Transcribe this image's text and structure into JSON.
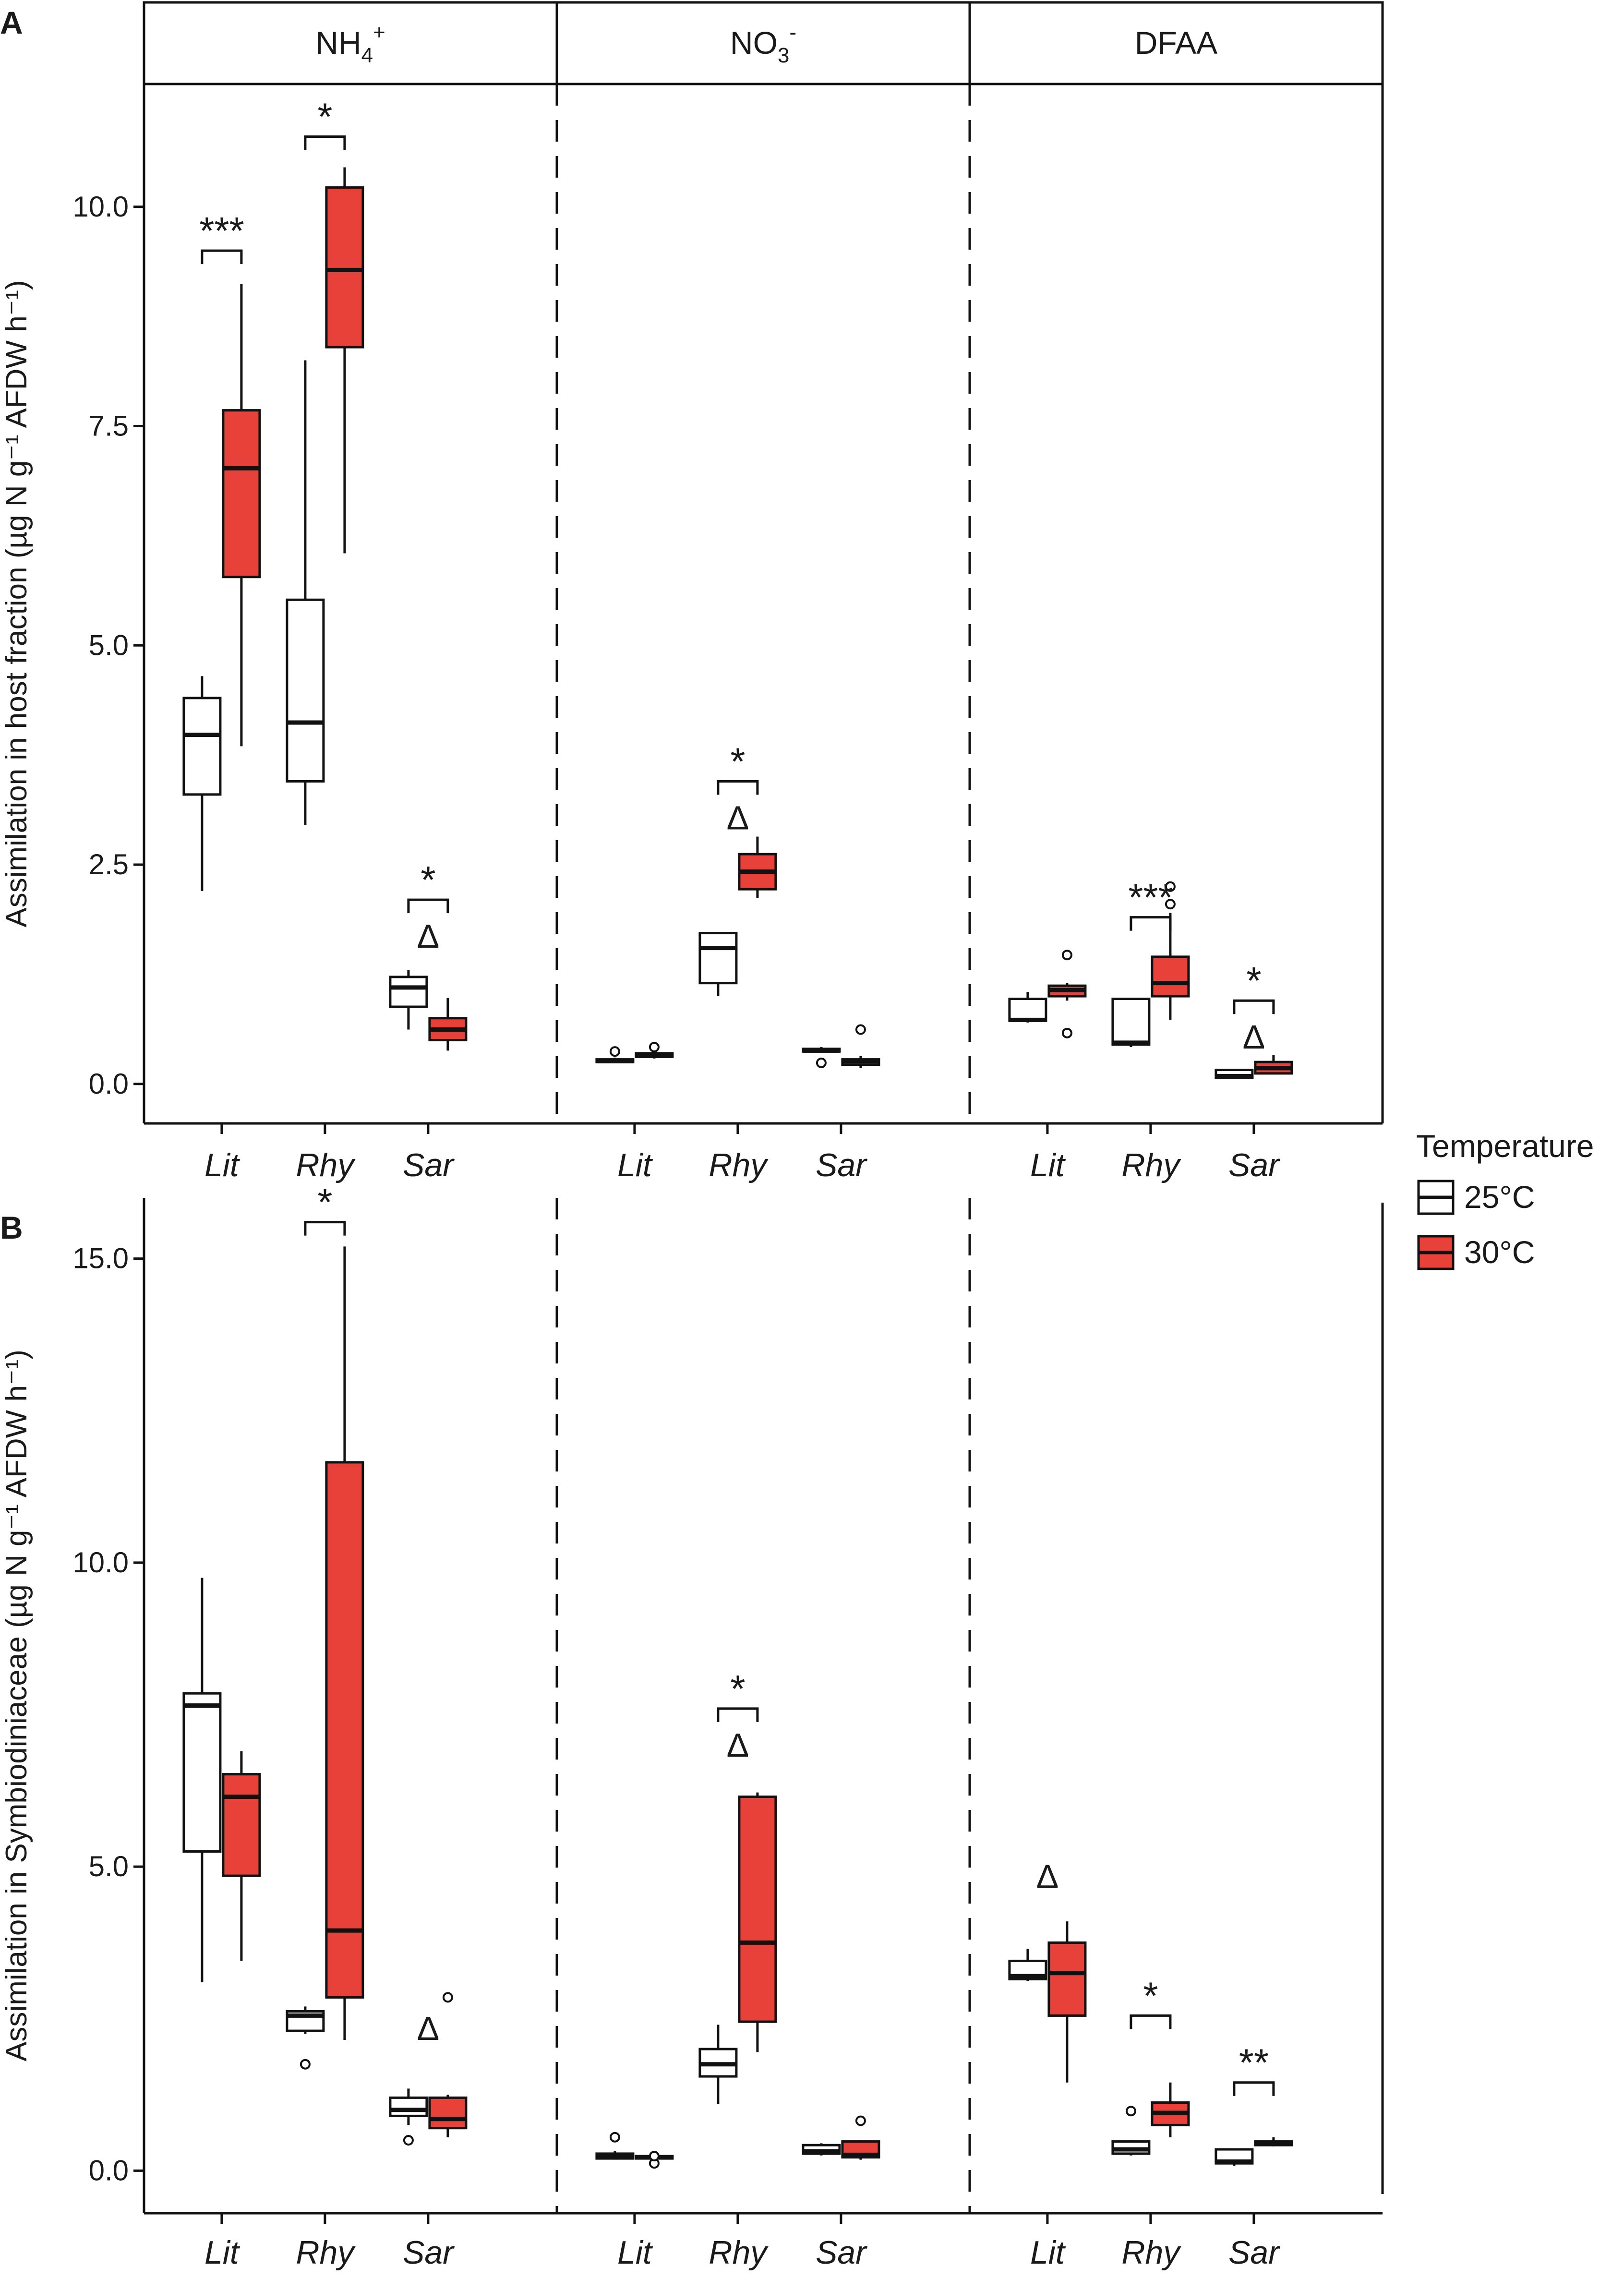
{
  "chart_data": [
    {
      "type": "boxplot",
      "panel_label": "A",
      "ylabel": "Assimilation in host fraction (µg N g⁻¹ AFDW h⁻¹)",
      "ylim": [
        -0.45,
        11.4
      ],
      "yticks": [
        0.0,
        2.5,
        5.0,
        7.5,
        10.0
      ],
      "ytick_labels": [
        "0.0",
        "2.5",
        "5.0",
        "7.5",
        "10.0"
      ],
      "facets": [
        {
          "label_base": "NH",
          "label_sub": "4",
          "label_sup": "+",
          "categories": [
            "Lit",
            "Rhy",
            "Sar"
          ],
          "boxes": [
            {
              "category": "Lit",
              "group": "25°C",
              "min": 2.2,
              "q1": 3.3,
              "median": 3.98,
              "q3": 4.4,
              "max": 4.65,
              "outliers": []
            },
            {
              "category": "Lit",
              "group": "30°C",
              "min": 3.85,
              "q1": 5.78,
              "median": 7.02,
              "q3": 7.68,
              "max": 9.12,
              "outliers": []
            },
            {
              "category": "Rhy",
              "group": "25°C",
              "min": 2.95,
              "q1": 3.45,
              "median": 4.12,
              "q3": 5.52,
              "max": 8.25,
              "outliers": []
            },
            {
              "category": "Rhy",
              "group": "30°C",
              "min": 6.05,
              "q1": 8.4,
              "median": 9.28,
              "q3": 10.22,
              "max": 10.45,
              "outliers": []
            },
            {
              "category": "Sar",
              "group": "25°C",
              "min": 0.62,
              "q1": 0.88,
              "median": 1.1,
              "q3": 1.22,
              "max": 1.3,
              "outliers": []
            },
            {
              "category": "Sar",
              "group": "30°C",
              "min": 0.38,
              "q1": 0.5,
              "median": 0.62,
              "q3": 0.75,
              "max": 0.98,
              "outliers": []
            }
          ],
          "annotations": [
            {
              "category": "Lit",
              "sig": "***",
              "delta": false,
              "y": 9.5
            },
            {
              "category": "Rhy",
              "sig": "*",
              "delta": false,
              "y": 10.8
            },
            {
              "category": "Sar",
              "sig": "*",
              "delta": true,
              "y": 2.1
            }
          ]
        },
        {
          "label_base": "NO",
          "label_sub": "3",
          "label_sup": "-",
          "categories": [
            "Lit",
            "Rhy",
            "Sar"
          ],
          "boxes": [
            {
              "category": "Lit",
              "group": "25°C",
              "min": 0.24,
              "q1": 0.25,
              "median": 0.26,
              "q3": 0.28,
              "max": 0.3,
              "outliers": [
                0.37
              ]
            },
            {
              "category": "Lit",
              "group": "30°C",
              "min": 0.29,
              "q1": 0.31,
              "median": 0.32,
              "q3": 0.35,
              "max": 0.37,
              "outliers": [
                0.42
              ]
            },
            {
              "category": "Rhy",
              "group": "25°C",
              "min": 1.0,
              "q1": 1.15,
              "median": 1.55,
              "q3": 1.72,
              "max": 1.72,
              "outliers": []
            },
            {
              "category": "Rhy",
              "group": "30°C",
              "min": 2.12,
              "q1": 2.22,
              "median": 2.42,
              "q3": 2.62,
              "max": 2.82,
              "outliers": []
            },
            {
              "category": "Sar",
              "group": "25°C",
              "min": 0.36,
              "q1": 0.37,
              "median": 0.38,
              "q3": 0.4,
              "max": 0.42,
              "outliers": [
                0.24
              ]
            },
            {
              "category": "Sar",
              "group": "30°C",
              "min": 0.18,
              "q1": 0.22,
              "median": 0.26,
              "q3": 0.28,
              "max": 0.32,
              "outliers": [
                0.62
              ]
            }
          ],
          "annotations": [
            {
              "category": "Rhy",
              "sig": "*",
              "delta": true,
              "y": 3.45
            }
          ]
        },
        {
          "label_base": "DFAA",
          "label_sub": "",
          "label_sup": "",
          "categories": [
            "Lit",
            "Rhy",
            "Sar"
          ],
          "boxes": [
            {
              "category": "Lit",
              "group": "25°C",
              "min": 0.7,
              "q1": 0.72,
              "median": 0.73,
              "q3": 0.97,
              "max": 1.05,
              "outliers": []
            },
            {
              "category": "Lit",
              "group": "30°C",
              "min": 0.95,
              "q1": 1.0,
              "median": 1.07,
              "q3": 1.12,
              "max": 1.15,
              "outliers": [
                0.58,
                1.47
              ]
            },
            {
              "category": "Rhy",
              "group": "25°C",
              "min": 0.42,
              "q1": 0.45,
              "median": 0.47,
              "q3": 0.97,
              "max": 0.98,
              "outliers": []
            },
            {
              "category": "Rhy",
              "group": "30°C",
              "min": 0.73,
              "q1": 1.0,
              "median": 1.15,
              "q3": 1.45,
              "max": 1.95,
              "outliers": [
                2.05,
                2.25
              ]
            },
            {
              "category": "Sar",
              "group": "25°C",
              "min": 0.06,
              "q1": 0.07,
              "median": 0.09,
              "q3": 0.16,
              "max": 0.17,
              "outliers": []
            },
            {
              "category": "Sar",
              "group": "30°C",
              "min": 0.11,
              "q1": 0.12,
              "median": 0.18,
              "q3": 0.25,
              "max": 0.33,
              "outliers": []
            }
          ],
          "annotations": [
            {
              "category": "Rhy",
              "sig": "***",
              "delta": false,
              "y": 1.9
            },
            {
              "category": "Sar",
              "sig": "*",
              "delta": true,
              "y": 0.95
            }
          ]
        }
      ]
    },
    {
      "type": "boxplot",
      "panel_label": "B",
      "ylabel": "Assimilation in Symbiodiniaceae (µg N g⁻¹ AFDW h⁻¹)",
      "ylim": [
        -0.7,
        16.0
      ],
      "yticks": [
        0.0,
        5.0,
        10.0,
        15.0
      ],
      "ytick_labels": [
        "0.0",
        "5.0",
        "10.0",
        "15.0"
      ],
      "facets": [
        {
          "categories": [
            "Lit",
            "Rhy",
            "Sar"
          ],
          "boxes": [
            {
              "category": "Lit",
              "group": "25°C",
              "min": 3.1,
              "q1": 5.25,
              "median": 7.65,
              "q3": 7.85,
              "max": 9.75,
              "outliers": []
            },
            {
              "category": "Lit",
              "group": "30°C",
              "min": 3.45,
              "q1": 4.85,
              "median": 6.15,
              "q3": 6.52,
              "max": 6.9,
              "outliers": []
            },
            {
              "category": "Rhy",
              "group": "25°C",
              "min": 2.25,
              "q1": 2.3,
              "median": 2.55,
              "q3": 2.62,
              "max": 2.7,
              "outliers": [
                1.75
              ]
            },
            {
              "category": "Rhy",
              "group": "30°C",
              "min": 2.15,
              "q1": 2.85,
              "median": 3.95,
              "q3": 11.65,
              "max": 15.2,
              "outliers": []
            },
            {
              "category": "Sar",
              "group": "25°C",
              "min": 0.75,
              "q1": 0.9,
              "median": 1.0,
              "q3": 1.2,
              "max": 1.35,
              "outliers": [
                0.5
              ]
            },
            {
              "category": "Sar",
              "group": "30°C",
              "min": 0.55,
              "q1": 0.7,
              "median": 0.85,
              "q3": 1.2,
              "max": 1.25,
              "outliers": [
                2.85
              ]
            }
          ],
          "annotations": [
            {
              "category": "Rhy",
              "sig": "*",
              "delta": false,
              "y": 15.6
            },
            {
              "category": "Sar",
              "sig": "",
              "delta": true,
              "y": 2.15
            }
          ]
        },
        {
          "categories": [
            "Lit",
            "Rhy",
            "Sar"
          ],
          "boxes": [
            {
              "category": "Lit",
              "group": "25°C",
              "min": 0.18,
              "q1": 0.2,
              "median": 0.24,
              "q3": 0.28,
              "max": 0.32,
              "outliers": [
                0.55
              ]
            },
            {
              "category": "Lit",
              "group": "30°C",
              "min": 0.18,
              "q1": 0.2,
              "median": 0.22,
              "q3": 0.24,
              "max": 0.26,
              "outliers": [
                0.12,
                0.24
              ]
            },
            {
              "category": "Rhy",
              "group": "25°C",
              "min": 1.1,
              "q1": 1.55,
              "median": 1.75,
              "q3": 2.0,
              "max": 2.4,
              "outliers": []
            },
            {
              "category": "Rhy",
              "group": "30°C",
              "min": 1.95,
              "q1": 2.45,
              "median": 3.75,
              "q3": 6.15,
              "max": 6.22,
              "outliers": []
            },
            {
              "category": "Sar",
              "group": "25°C",
              "min": 0.25,
              "q1": 0.28,
              "median": 0.32,
              "q3": 0.42,
              "max": 0.45,
              "outliers": []
            },
            {
              "category": "Sar",
              "group": "30°C",
              "min": 0.18,
              "q1": 0.22,
              "median": 0.26,
              "q3": 0.48,
              "max": 0.5,
              "outliers": [
                0.82
              ]
            }
          ],
          "annotations": [
            {
              "category": "Rhy",
              "sig": "*",
              "delta": true,
              "y": 7.6
            }
          ]
        },
        {
          "categories": [
            "Lit",
            "Rhy",
            "Sar"
          ],
          "boxes": [
            {
              "category": "Lit",
              "group": "25°C",
              "min": 3.12,
              "q1": 3.15,
              "median": 3.2,
              "q3": 3.45,
              "max": 3.65,
              "outliers": []
            },
            {
              "category": "Lit",
              "group": "30°C",
              "min": 1.45,
              "q1": 2.55,
              "median": 3.25,
              "q3": 3.75,
              "max": 4.1,
              "outliers": []
            },
            {
              "category": "Rhy",
              "group": "25°C",
              "min": 0.25,
              "q1": 0.28,
              "median": 0.35,
              "q3": 0.48,
              "max": 0.5,
              "outliers": [
                0.98
              ]
            },
            {
              "category": "Rhy",
              "group": "30°C",
              "min": 0.55,
              "q1": 0.75,
              "median": 0.95,
              "q3": 1.12,
              "max": 1.45,
              "outliers": []
            },
            {
              "category": "Sar",
              "group": "25°C",
              "min": 0.08,
              "q1": 0.12,
              "median": 0.15,
              "q3": 0.35,
              "max": 0.37,
              "outliers": []
            },
            {
              "category": "Sar",
              "group": "30°C",
              "min": 0.4,
              "q1": 0.42,
              "median": 0.45,
              "q3": 0.48,
              "max": 0.55,
              "outliers": []
            }
          ],
          "annotations": [
            {
              "category": "Lit",
              "delta_only": true,
              "delta": true,
              "y": 4.65
            },
            {
              "category": "Rhy",
              "sig": "*",
              "delta": false,
              "y": 2.55
            },
            {
              "category": "Sar",
              "sig": "**",
              "delta": false,
              "y": 1.45
            }
          ]
        }
      ]
    }
  ],
  "legend": {
    "title": "Temperature",
    "entries": [
      {
        "label": "25°C",
        "fill": "#ffffff"
      },
      {
        "label": "30°C",
        "fill": "#e8413a"
      }
    ]
  },
  "delta_symbol": "Δ",
  "colors": {
    "box_30": "#e8413a",
    "box_25": "#ffffff",
    "line": "#111111"
  }
}
